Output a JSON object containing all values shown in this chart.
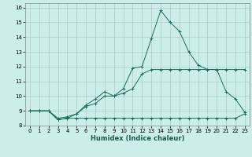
{
  "xlabel": "Humidex (Indice chaleur)",
  "background_color": "#cceee8",
  "grid_color": "#aacccc",
  "line_color": "#1a6b5a",
  "xlim": [
    -0.5,
    23.5
  ],
  "ylim": [
    8,
    16.3
  ],
  "yticks": [
    8,
    9,
    10,
    11,
    12,
    13,
    14,
    15,
    16
  ],
  "xticks": [
    0,
    1,
    2,
    3,
    4,
    5,
    6,
    7,
    8,
    9,
    10,
    11,
    12,
    13,
    14,
    15,
    16,
    17,
    18,
    19,
    20,
    21,
    22,
    23
  ],
  "line1_x": [
    0,
    1,
    2,
    3,
    4,
    5,
    6,
    7,
    8,
    9,
    10,
    11,
    12,
    13,
    14,
    15,
    16,
    17,
    18,
    19,
    20,
    21,
    22,
    23
  ],
  "line1_y": [
    9.0,
    9.0,
    9.0,
    8.4,
    8.5,
    8.5,
    8.5,
    8.5,
    8.5,
    8.5,
    8.5,
    8.5,
    8.5,
    8.5,
    8.5,
    8.5,
    8.5,
    8.5,
    8.5,
    8.5,
    8.5,
    8.5,
    8.5,
    8.8
  ],
  "line2_x": [
    0,
    1,
    2,
    3,
    4,
    5,
    6,
    7,
    8,
    9,
    10,
    11,
    12,
    13,
    14,
    15,
    16,
    17,
    18,
    19,
    20,
    21,
    22,
    23
  ],
  "line2_y": [
    9.0,
    9.0,
    9.0,
    8.5,
    8.6,
    8.8,
    9.3,
    9.5,
    10.0,
    10.0,
    10.2,
    10.5,
    11.5,
    11.8,
    11.8,
    11.8,
    11.8,
    11.8,
    11.8,
    11.8,
    11.8,
    11.8,
    11.8,
    11.8
  ],
  "line3_x": [
    0,
    1,
    2,
    3,
    4,
    5,
    6,
    7,
    8,
    9,
    10,
    11,
    12,
    13,
    14,
    15,
    16,
    17,
    18,
    19,
    20,
    21,
    22,
    23
  ],
  "line3_y": [
    9.0,
    9.0,
    9.0,
    8.4,
    8.5,
    8.8,
    9.4,
    9.8,
    10.3,
    10.0,
    10.5,
    11.9,
    12.0,
    13.9,
    15.8,
    15.0,
    14.4,
    13.0,
    12.1,
    11.8,
    11.8,
    10.3,
    9.8,
    8.9
  ]
}
